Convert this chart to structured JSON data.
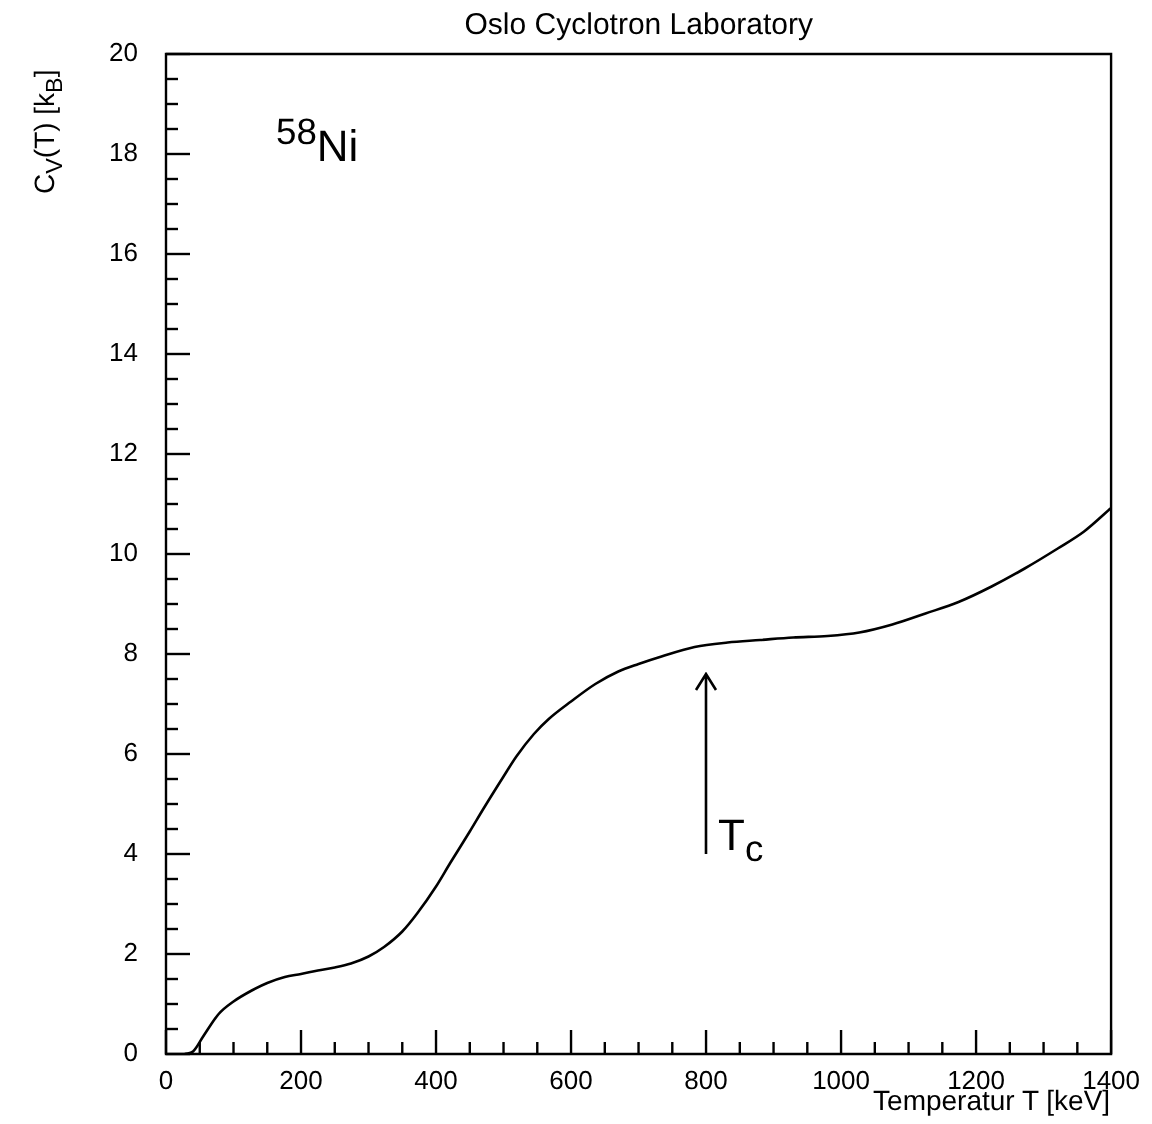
{
  "chart_data": {
    "type": "line",
    "title": "Oslo Cyclotron Laboratory",
    "xlabel": "Temperatur T [keV]",
    "ylabel": "C$_{V}$(T) [k$_{B}$]",
    "x": [
      28,
      40,
      55,
      78,
      100,
      127,
      150,
      176,
      200,
      225,
      250,
      274,
      300,
      323,
      350,
      372,
      400,
      421,
      450,
      470,
      500,
      519,
      545,
      567,
      600,
      636,
      670,
      700,
      734,
      783,
      832,
      880,
      929,
      980,
      1027,
      1076,
      1125,
      1174,
      1223,
      1272,
      1321,
      1360,
      1400
    ],
    "series": [
      {
        "color": "#000000",
        "values": [
          0,
          0.05,
          0.35,
          0.8,
          1.05,
          1.27,
          1.42,
          1.54,
          1.6,
          1.67,
          1.73,
          1.81,
          1.95,
          2.14,
          2.45,
          2.81,
          3.35,
          3.82,
          4.45,
          4.9,
          5.55,
          5.95,
          6.4,
          6.7,
          7.05,
          7.4,
          7.65,
          7.8,
          7.95,
          8.14,
          8.23,
          8.28,
          8.33,
          8.36,
          8.43,
          8.59,
          8.81,
          9.04,
          9.35,
          9.71,
          10.11,
          10.45,
          10.92
        ]
      }
    ],
    "xlim": [
      0,
      1400
    ],
    "ylim": [
      0,
      20
    ],
    "xticks": [
      0,
      {
        "value": 50,
        "label": null
      },
      {
        "value": 100,
        "label": null
      },
      {
        "value": 150,
        "label": null
      },
      200,
      {
        "value": 250,
        "label": null
      },
      {
        "value": 300,
        "label": null
      },
      {
        "value": 350,
        "label": null
      },
      400,
      {
        "value": 450,
        "label": null
      },
      {
        "value": 500,
        "label": null
      },
      {
        "value": 550,
        "label": null
      },
      600,
      {
        "value": 650,
        "label": null
      },
      {
        "value": 700,
        "label": null
      },
      {
        "value": 750,
        "label": null
      },
      800,
      {
        "value": 850,
        "label": null
      },
      {
        "value": 900,
        "label": null
      },
      {
        "value": 950,
        "label": null
      },
      1000,
      {
        "value": 1050,
        "label": null
      },
      {
        "value": 1100,
        "label": null
      },
      {
        "value": 1150,
        "label": null
      },
      1200,
      {
        "value": 1250,
        "label": null
      },
      {
        "value": 1300,
        "label": null
      },
      {
        "value": 1350,
        "label": null
      },
      1400
    ],
    "yticks": [
      0,
      {
        "value": 0.5,
        "label": null
      },
      {
        "value": 1,
        "label": null
      },
      {
        "value": 1.5,
        "label": null
      },
      2,
      {
        "value": 2.5,
        "label": null
      },
      {
        "value": 3,
        "label": null
      },
      {
        "value": 3.5,
        "label": null
      },
      4,
      {
        "value": 4.5,
        "label": null
      },
      {
        "value": 5,
        "label": null
      },
      {
        "value": 5.5,
        "label": null
      },
      6,
      {
        "value": 6.5,
        "label": null
      },
      {
        "value": 7,
        "label": null
      },
      {
        "value": 7.5,
        "label": null
      },
      8,
      {
        "value": 8.5,
        "label": null
      },
      {
        "value": 9,
        "label": null
      },
      {
        "value": 9.5,
        "label": null
      },
      10,
      {
        "value": 10.5,
        "label": null
      },
      {
        "value": 11,
        "label": null
      },
      {
        "value": 11.5,
        "label": null
      },
      12,
      {
        "value": 12.5,
        "label": null
      },
      {
        "value": 13,
        "label": null
      },
      {
        "value": 13.5,
        "label": null
      },
      14,
      {
        "value": 14.5,
        "label": null
      },
      {
        "value": 15,
        "label": null
      },
      {
        "value": 15.5,
        "label": null
      },
      16,
      {
        "value": 16.5,
        "label": null
      },
      {
        "value": 17,
        "label": null
      },
      {
        "value": 17.5,
        "label": null
      },
      18,
      {
        "value": 18.5,
        "label": null
      },
      {
        "value": 19,
        "label": null
      },
      {
        "value": 19.5,
        "label": null
      },
      20
    ],
    "annotations": [
      "$^{58}$Ni",
      "T$_{c}$"
    ],
    "marker": "none",
    "line_style": "solid",
    "grid": false,
    "legend": false
  }
}
